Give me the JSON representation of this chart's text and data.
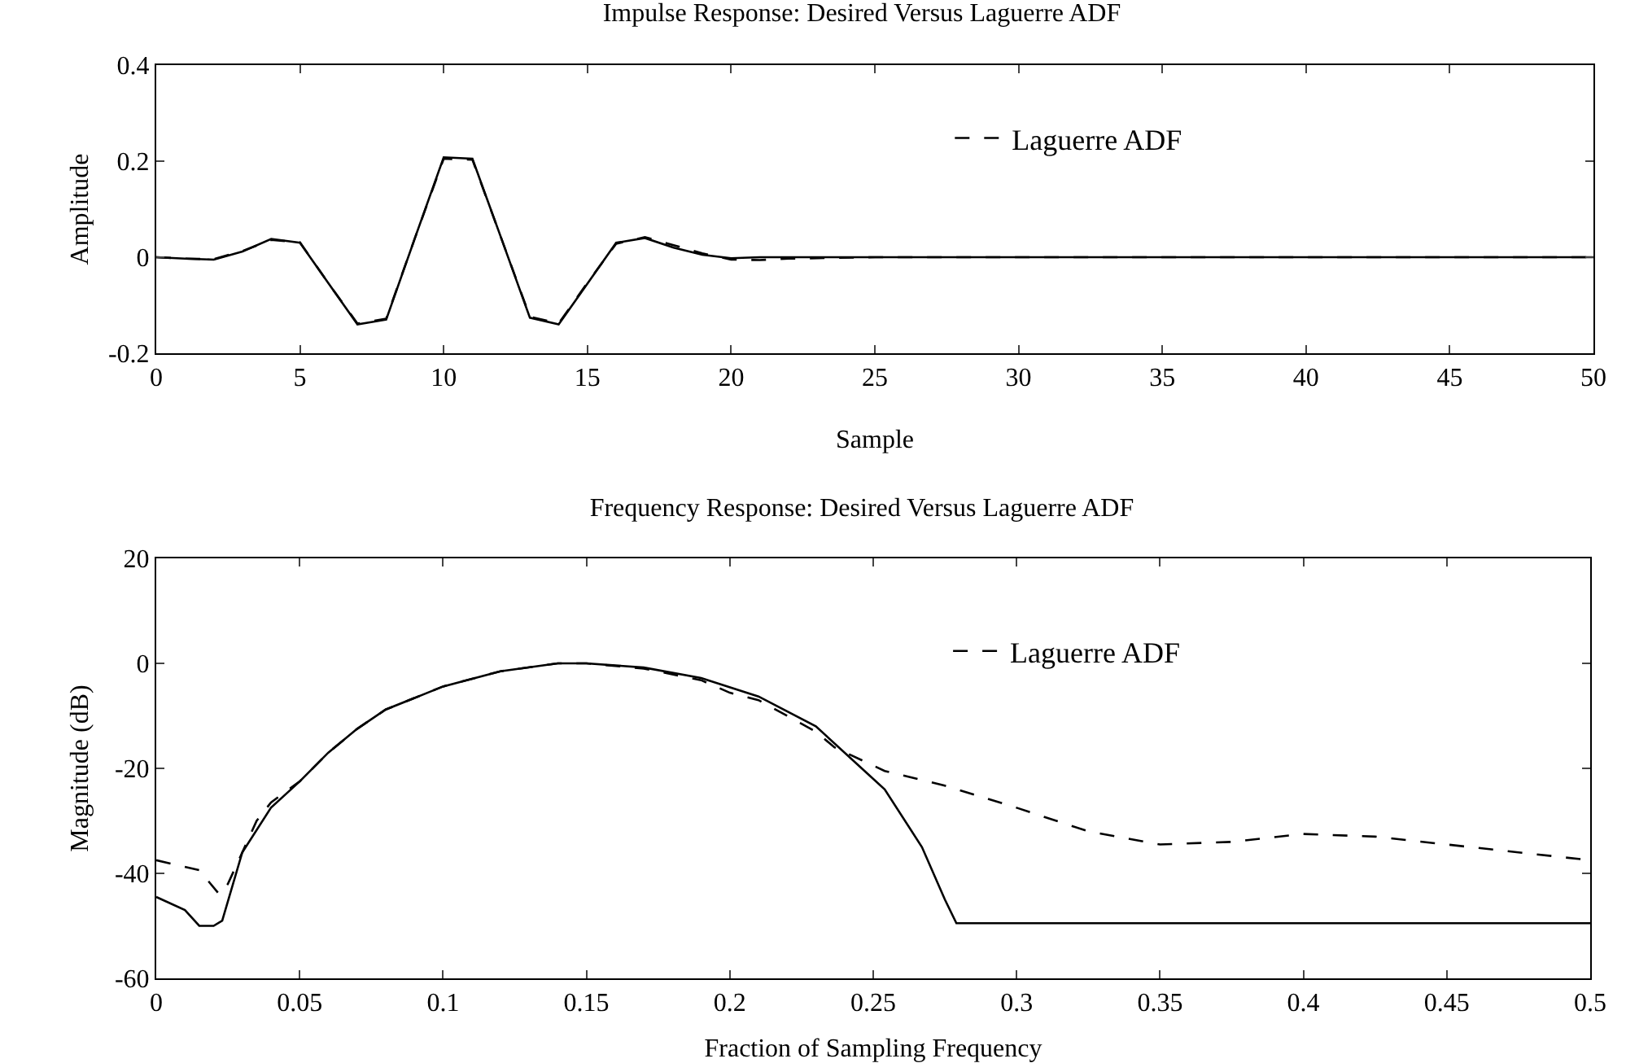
{
  "chart_data": [
    {
      "type": "line",
      "title": "Impulse Response: Desired Versus Laguerre ADF",
      "xlabel": "Sample",
      "ylabel": "Amplitude",
      "xlim": [
        0,
        50
      ],
      "xticks": [
        0,
        5,
        10,
        15,
        20,
        25,
        30,
        35,
        40,
        45,
        50
      ],
      "ylim": [
        -0.2,
        0.4
      ],
      "yticks": [
        -0.2,
        0,
        0.2,
        0.4
      ],
      "grid": false,
      "legend": "top right",
      "x": [
        0,
        1,
        2,
        3,
        4,
        5,
        6,
        7,
        8,
        9,
        10,
        11,
        12,
        13,
        14,
        15,
        16,
        17,
        18,
        19,
        20,
        21,
        22,
        25,
        30,
        35,
        40,
        45,
        50
      ],
      "series": [
        {
          "color": "#000000",
          "line_style": "solid",
          "values": [
            0,
            -0.003,
            -0.005,
            0.012,
            0.038,
            0.03,
            -0.055,
            -0.14,
            -0.13,
            0.04,
            0.208,
            0.205,
            0.04,
            -0.126,
            -0.14,
            -0.055,
            0.03,
            0.04,
            0.02,
            0.005,
            -0.002,
            0,
            0,
            0,
            0,
            0,
            0,
            0,
            0
          ]
        },
        {
          "name": "Laguerre ADF",
          "color": "#000000",
          "line_style": "dashed",
          "values": [
            0,
            -0.003,
            -0.004,
            0.013,
            0.036,
            0.031,
            -0.055,
            -0.138,
            -0.128,
            0.04,
            0.205,
            0.203,
            0.04,
            -0.124,
            -0.138,
            -0.053,
            0.028,
            0.042,
            0.025,
            0.008,
            -0.005,
            -0.006,
            -0.003,
            0,
            0,
            0,
            0,
            0,
            0
          ]
        }
      ]
    },
    {
      "type": "line",
      "title": "Frequency Response: Desired Versus Laguerre ADF",
      "xlabel": "Fraction of Sampling Frequency",
      "ylabel": "Magnitude (dB)",
      "xlim": [
        0,
        0.5
      ],
      "xticks": [
        0,
        0.05,
        0.1,
        0.15,
        0.2,
        0.25,
        0.3,
        0.35,
        0.4,
        0.45,
        0.5
      ],
      "ylim": [
        -60,
        20
      ],
      "yticks": [
        -60,
        -40,
        -20,
        0,
        20
      ],
      "grid": false,
      "legend": "top right",
      "series": [
        {
          "color": "#000000",
          "line_style": "solid",
          "x": [
            0,
            0.01,
            0.015,
            0.02,
            0.023,
            0.03,
            0.04,
            0.05,
            0.06,
            0.07,
            0.08,
            0.1,
            0.12,
            0.14,
            0.15,
            0.17,
            0.19,
            0.21,
            0.23,
            0.248,
            0.254,
            0.267,
            0.275,
            0.279,
            0.3,
            0.35,
            0.4,
            0.45,
            0.5
          ],
          "values": [
            -44.5,
            -47,
            -50,
            -50,
            -49,
            -36,
            -27.5,
            -22.5,
            -17,
            -12.5,
            -8.8,
            -4.4,
            -1.5,
            0,
            0,
            -0.8,
            -2.8,
            -6.3,
            -12,
            -21,
            -24,
            -35,
            -45,
            -49.5,
            -49.5,
            -49.5,
            -49.5,
            -49.5,
            -49.5
          ]
        },
        {
          "name": "Laguerre ADF",
          "color": "#000000",
          "line_style": "dashed",
          "x": [
            0,
            0.015,
            0.022,
            0.025,
            0.03,
            0.035,
            0.04,
            0.05,
            0.06,
            0.07,
            0.08,
            0.1,
            0.12,
            0.14,
            0.15,
            0.17,
            0.19,
            0.2,
            0.21,
            0.23,
            0.2365,
            0.254,
            0.275,
            0.3,
            0.325,
            0.35,
            0.375,
            0.4,
            0.425,
            0.45,
            0.475,
            0.5
          ],
          "values": [
            -37.5,
            -39.4,
            -44,
            -42,
            -36,
            -30,
            -26.5,
            -22.5,
            -17,
            -12.5,
            -8.8,
            -4.4,
            -1.5,
            0,
            0,
            -1,
            -3.2,
            -5.6,
            -7,
            -13,
            -16,
            -20.5,
            -23.3,
            -27.5,
            -32,
            -34.5,
            -34,
            -32.5,
            -33,
            -34.5,
            -36,
            -37.5
          ]
        }
      ]
    }
  ]
}
